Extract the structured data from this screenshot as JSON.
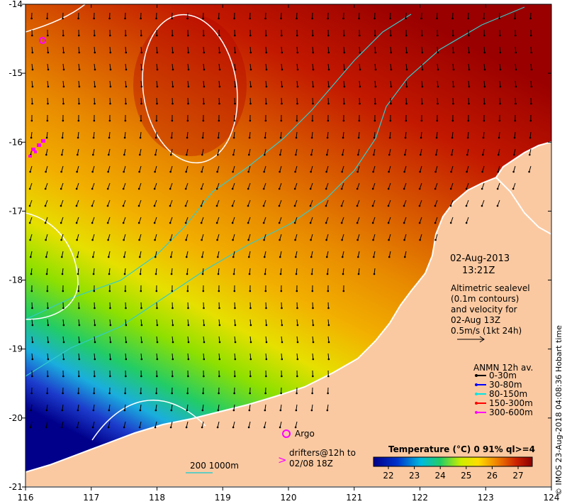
{
  "map": {
    "lon_labels": [
      "116",
      "117",
      "118",
      "119",
      "120",
      "121",
      "122",
      "123",
      "124"
    ],
    "lat_labels": [
      "-14",
      "-15",
      "-16",
      "-17",
      "-18",
      "-19",
      "-20",
      "-21"
    ],
    "lon_range": [
      116,
      124
    ],
    "lat_range": [
      -21,
      -14
    ]
  },
  "annotations": {
    "date": "02-Aug-2013",
    "time": "13:21Z",
    "alt_line1": "Altimetric sealevel",
    "alt_line2": "(0.1m contours)",
    "alt_line3": "and velocity for",
    "alt_line4": "02-Aug 13Z",
    "alt_line5": "0.5m/s (1kt 24h)",
    "anmn_title": "ANMN 12h av.",
    "depth_bins": [
      {
        "label": "0-30m",
        "color": "#000000"
      },
      {
        "label": "30-80m",
        "color": "#0000ff"
      },
      {
        "label": "80-150m",
        "color": "#00e5e5"
      },
      {
        "label": "150-300m",
        "color": "#ff0000"
      },
      {
        "label": "300-600m",
        "color": "#ff00ff"
      }
    ],
    "argo_label": "Argo",
    "drifters_line1": "drifters@12h to",
    "drifters_line2": "02/08 18Z",
    "isobath_label": "200  1000m",
    "credit": "© IMOS 23-Aug-2018 04:08:36 Hobart time"
  },
  "colorbar": {
    "title": "Temperature (°C) 0 91% ql>=4",
    "ticks": [
      "22",
      "23",
      "24",
      "25",
      "26",
      "27"
    ]
  },
  "colors": {
    "land": "#fbc9a1",
    "ocean_warm": "#b00000",
    "ocean_mid": "#ee8800",
    "ocean_cool": "#ffee00",
    "ocean_green": "#33dd33",
    "ocean_cold": "#0000aa",
    "isobath": "#33cccc",
    "sealevel_contour": "#ffffff"
  }
}
